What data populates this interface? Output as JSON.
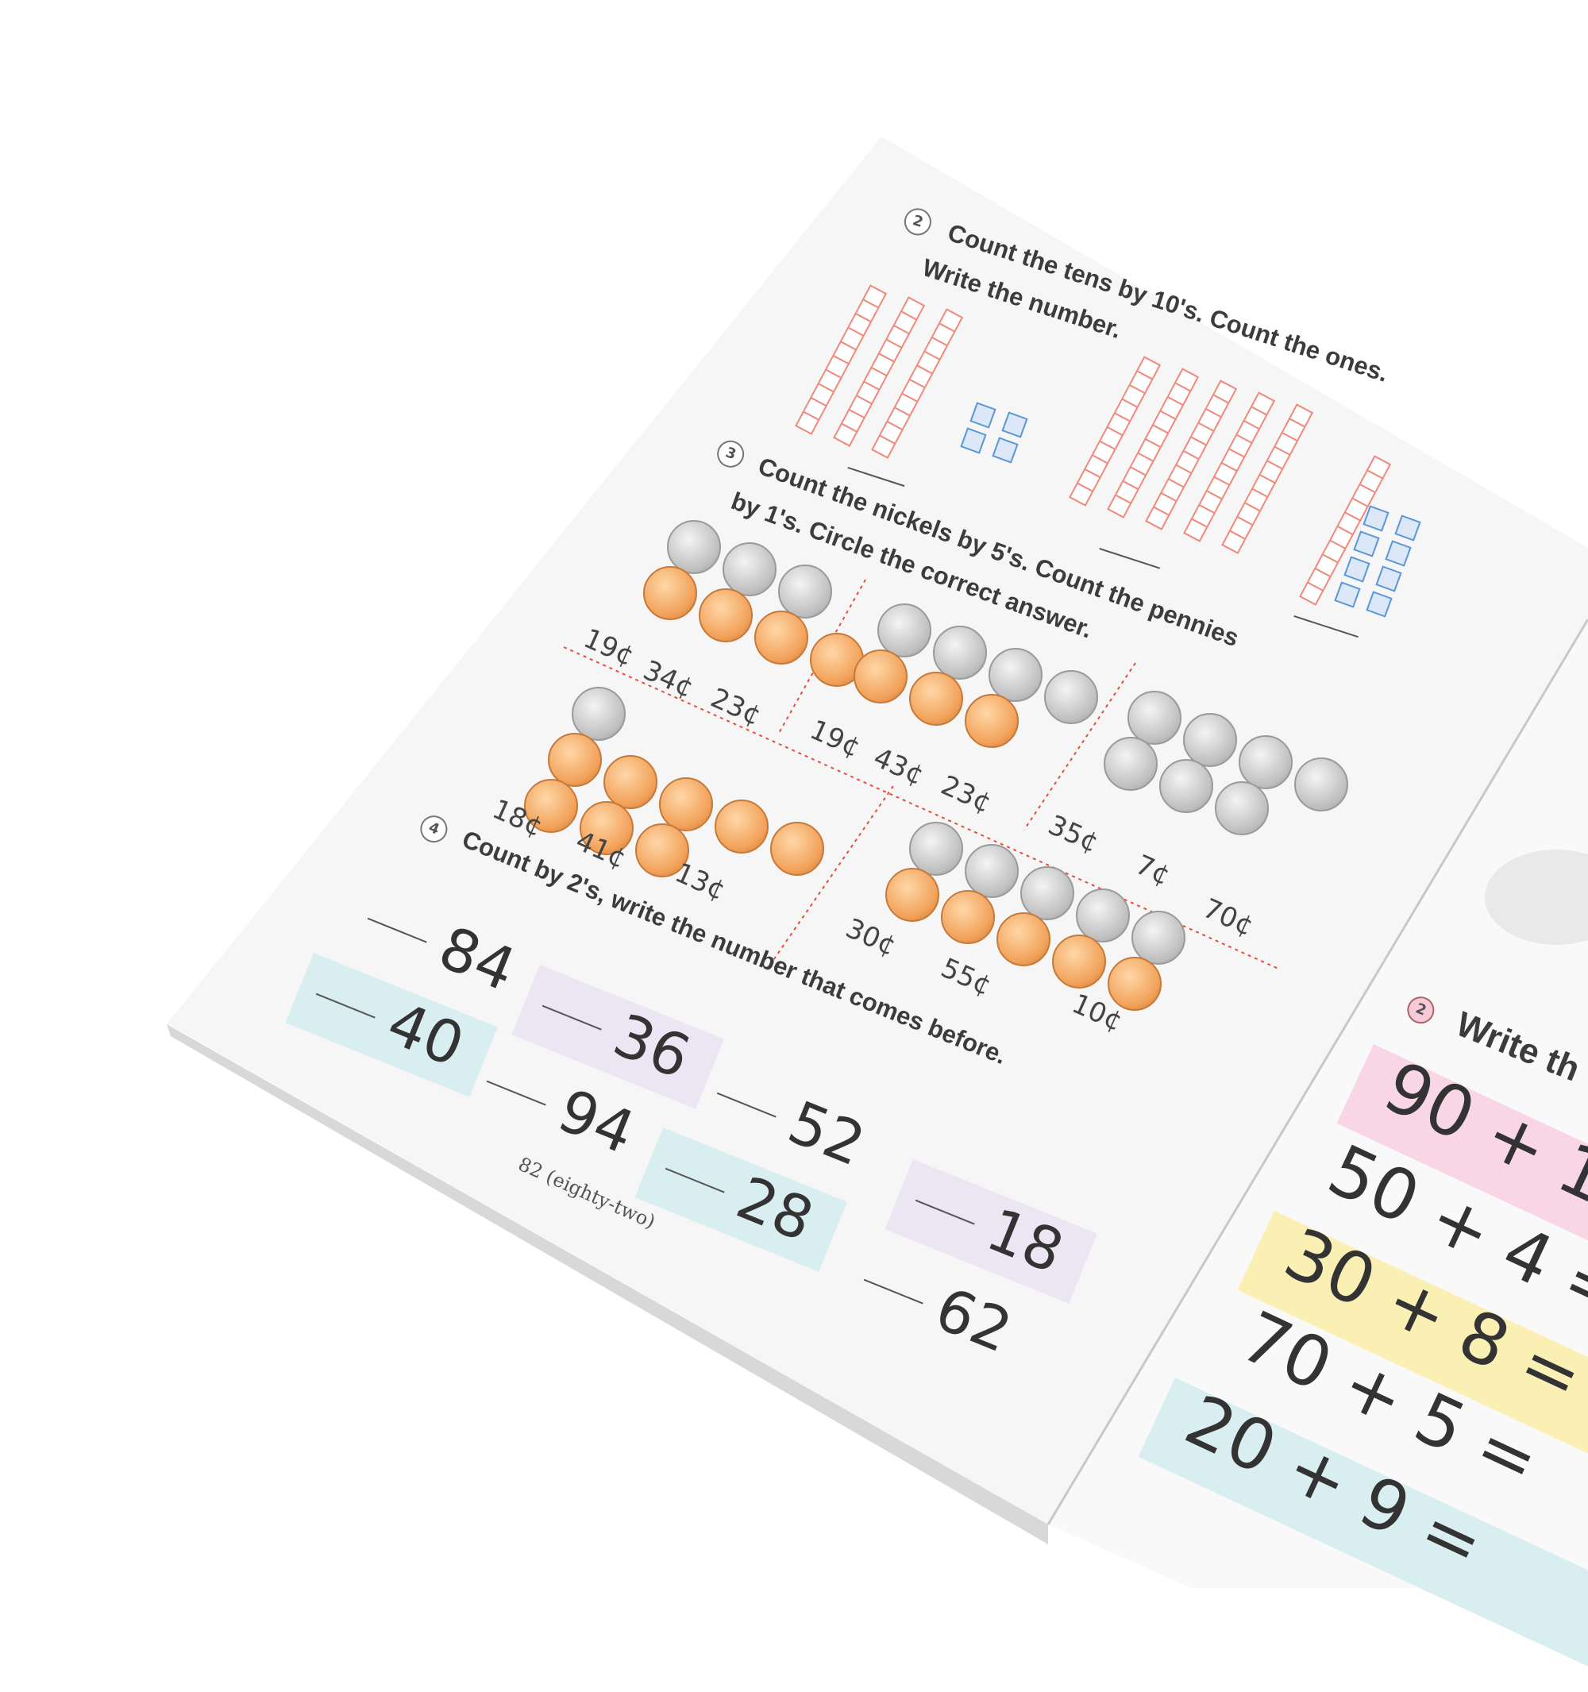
{
  "left_page": {
    "q2": {
      "number": "2",
      "line1": "Count the tens by 10's. Count the ones.",
      "line2": "Write the number.",
      "groups": [
        {
          "tens": 3,
          "ones": 4
        },
        {
          "tens": 6,
          "ones": 8
        }
      ]
    },
    "q3": {
      "number": "3",
      "line1": "Count the nickels by 5's. Count the pennies",
      "line2": "by 1's. Circle the correct answer.",
      "panels": [
        {
          "nickels": 3,
          "pennies": 4,
          "options": [
            "19¢",
            "34¢",
            "23¢"
          ]
        },
        {
          "nickels": 4,
          "pennies": 3,
          "options": [
            "19¢",
            "43¢",
            "23¢"
          ]
        },
        {
          "nickels": 7,
          "pennies": 0,
          "options": [
            "35¢",
            "7¢",
            "70¢"
          ]
        },
        {
          "nickels": 1,
          "pennies": 8,
          "options": [
            "18¢",
            "41¢",
            "13¢"
          ]
        },
        {
          "nickels": 5,
          "pennies": 5,
          "options": [
            "30¢",
            "55¢",
            "10¢"
          ]
        }
      ]
    },
    "q4": {
      "number": "4",
      "line1": "Count by 2's, write the number that comes before.",
      "items": [
        "84",
        "40",
        "36",
        "94",
        "52",
        "28",
        "18",
        "62"
      ]
    },
    "footer": "82 (eighty-two)"
  },
  "right_page": {
    "q2": {
      "number": "2",
      "heading": "Write th",
      "equations": [
        "90 + 1",
        "50 + 4 =",
        "30 + 8 =",
        "70 + 5 =",
        "20 + 9 ="
      ]
    }
  },
  "colors": {
    "tens_rod": "#f0897a",
    "ones_cube": "#5a97d6",
    "band_blue": "#d9eef1",
    "band_purple": "#ece6f4",
    "band_pink": "#f8d6e6",
    "band_yellow": "#fbf0b4",
    "divider": "#e0503c"
  }
}
